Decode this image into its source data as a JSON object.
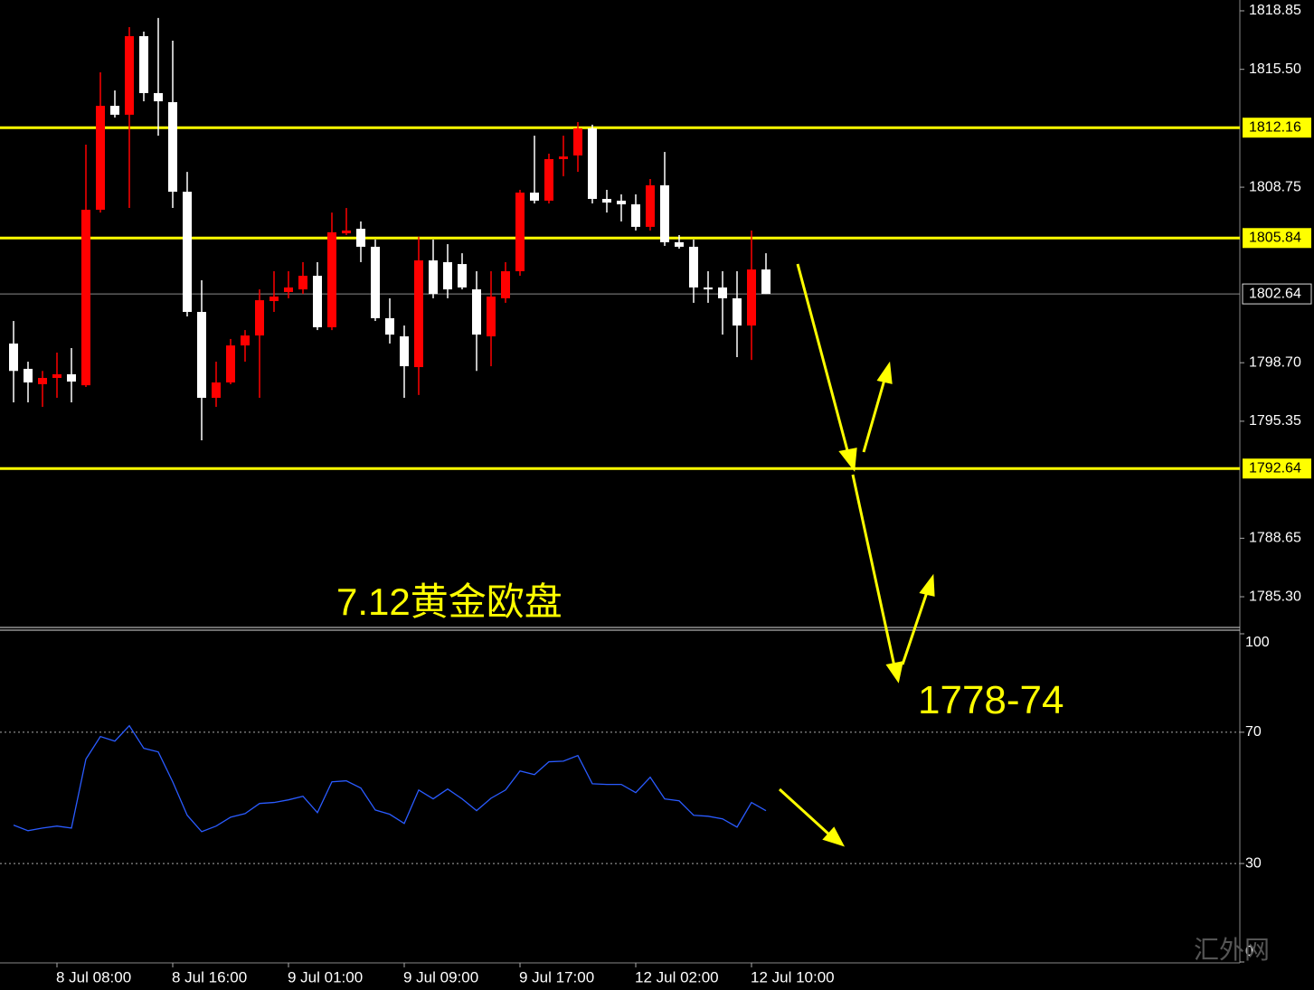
{
  "chart_data": [
    {
      "type": "candlestick",
      "up_color": "#ff0000",
      "down_color": "#ffffff",
      "open": [
        1799.8,
        1798.35,
        1797.47,
        1797.83,
        1798.04,
        1797.41,
        1807.46,
        1813.41,
        1812.9,
        1817.4,
        1814.14,
        1813.62,
        1808.49,
        1801.61,
        1796.69,
        1797.57,
        1799.69,
        1800.26,
        1802.23,
        1802.75,
        1802.9,
        1803.68,
        1800.73,
        1806.11,
        1806.37,
        1805.34,
        1801.25,
        1800.21,
        1798.45,
        1804.56,
        1804.46,
        1804.35,
        1802.9,
        1800.21,
        1802.39,
        1803.94,
        1808.44,
        1807.98,
        1810.36,
        1810.57,
        1812.12,
        1808.08,
        1807.98,
        1807.77,
        1806.48,
        1808.86,
        1805.6,
        1805.34,
        1803.01,
        1803.01,
        1802.39,
        1800.83,
        1804.04
      ],
      "high": [
        1801.09,
        1798.76,
        1798.23,
        1799.28,
        1799.54,
        1811.19,
        1815.33,
        1814.29,
        1817.92,
        1817.66,
        1818.44,
        1817.14,
        1809.63,
        1803.42,
        1798.76,
        1800.06,
        1800.57,
        1802.9,
        1803.94,
        1803.94,
        1804.46,
        1804.46,
        1807.3,
        1807.56,
        1806.79,
        1805.75,
        1802.39,
        1800.83,
        1805.91,
        1805.75,
        1805.49,
        1804.97,
        1803.94,
        1803.94,
        1804.46,
        1808.6,
        1811.7,
        1810.67,
        1811.7,
        1812.48,
        1812.33,
        1808.6,
        1808.34,
        1808.34,
        1809.22,
        1810.77,
        1806.01,
        1805.75,
        1803.94,
        1803.94,
        1803.94,
        1806.27,
        1804.97
      ],
      "low": [
        1796.43,
        1796.43,
        1796.17,
        1796.69,
        1796.43,
        1797.31,
        1807.3,
        1812.74,
        1807.56,
        1813.67,
        1811.7,
        1807.56,
        1801.35,
        1794.26,
        1796.17,
        1797.47,
        1798.76,
        1796.69,
        1801.61,
        1802.39,
        1802.64,
        1800.57,
        1800.57,
        1806.01,
        1804.46,
        1801.09,
        1799.8,
        1796.69,
        1796.85,
        1802.39,
        1802.39,
        1802.9,
        1798.23,
        1798.5,
        1802.13,
        1803.68,
        1807.82,
        1807.82,
        1809.38,
        1809.63,
        1807.82,
        1807.3,
        1806.79,
        1806.27,
        1806.27,
        1805.39,
        1805.23,
        1802.13,
        1802.13,
        1800.31,
        1799.02,
        1798.86,
        1802.64
      ],
      "close": [
        1798.23,
        1797.57,
        1797.83,
        1798.04,
        1797.62,
        1807.46,
        1813.41,
        1812.9,
        1817.4,
        1814.14,
        1813.67,
        1808.49,
        1801.61,
        1796.69,
        1797.57,
        1799.69,
        1800.26,
        1802.28,
        1802.49,
        1803.01,
        1803.68,
        1800.73,
        1806.17,
        1806.27,
        1805.34,
        1801.25,
        1800.31,
        1798.5,
        1804.56,
        1802.64,
        1802.9,
        1803.01,
        1800.31,
        1802.49,
        1803.94,
        1808.44,
        1807.98,
        1810.36,
        1810.51,
        1812.12,
        1808.08,
        1807.87,
        1807.77,
        1806.48,
        1808.86,
        1805.6,
        1805.34,
        1803.01,
        1802.9,
        1802.39,
        1800.83,
        1804.04,
        1802.64
      ],
      "ylim": [
        1783.49,
        1819.47
      ],
      "yticks": [
        1818.85,
        {
          "value": 1815.5,
          "label": "1815.50"
        },
        1808.75,
        {
          "value": 1798.7,
          "label": "1798.70"
        },
        1795.35,
        1788.65,
        {
          "value": 1785.3,
          "label": "1785.30"
        }
      ],
      "levels": [
        1812.16,
        1805.84,
        1792.64
      ],
      "level_color": "#ffff00",
      "price_line": 1802.64,
      "annotations": [
        "7.12黄金欧盘",
        "1778-74"
      ]
    },
    {
      "type": "line",
      "color": "#2a5bff",
      "categories": [
        null,
        null,
        null,
        "8 Jul 08:00",
        null,
        null,
        null,
        null,
        null,
        null,
        null,
        "8 Jul 16:00",
        null,
        null,
        null,
        null,
        null,
        null,
        null,
        "9 Jul 01:00",
        null,
        null,
        null,
        null,
        null,
        null,
        null,
        "9 Jul 09:00",
        null,
        null,
        null,
        null,
        null,
        null,
        null,
        "9 Jul 17:00",
        null,
        null,
        null,
        null,
        null,
        null,
        null,
        "12 Jul 02:00",
        null,
        null,
        null,
        null,
        null,
        null,
        null,
        "12 Jul 10:00",
        null
      ],
      "values": [
        41.7,
        40.0,
        40.8,
        41.4,
        40.8,
        61.8,
        68.7,
        67.3,
        72.0,
        65.1,
        64.0,
        54.9,
        44.7,
        39.7,
        41.4,
        44.1,
        45.2,
        48.3,
        48.6,
        49.4,
        50.5,
        45.5,
        54.9,
        55.2,
        53.0,
        46.3,
        45.0,
        42.2,
        52.4,
        49.7,
        52.7,
        49.7,
        46.1,
        49.9,
        52.4,
        58.2,
        57.1,
        61.0,
        61.2,
        62.9,
        54.3,
        54.1,
        54.1,
        51.6,
        56.3,
        49.7,
        49.1,
        44.7,
        44.4,
        43.6,
        41.1,
        48.6,
        46.1
      ],
      "ylim": [
        0,
        100
      ],
      "yticks": [
        100,
        70,
        30,
        0
      ]
    }
  ],
  "watermark": "汇外网"
}
